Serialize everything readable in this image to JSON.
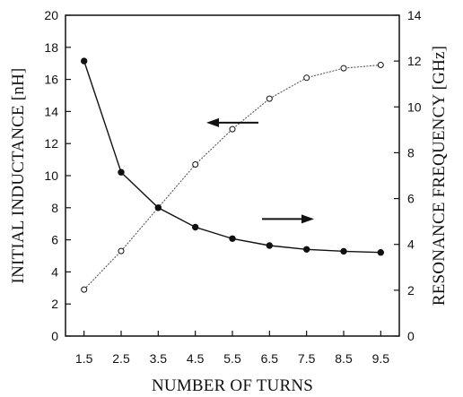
{
  "chart_data": {
    "type": "line",
    "xlabel": "NUMBER OF TURNS",
    "ylabel_left": "INITIAL INDUCTANCE [nH]",
    "ylabel_right": "RESONANCE FREQUENCY [GHz]",
    "x": [
      1.5,
      2.5,
      3.5,
      4.5,
      5.5,
      6.5,
      7.5,
      8.5,
      9.5
    ],
    "x_ticks": [
      "1.5",
      "2.5",
      "3.5",
      "4.5",
      "5.5",
      "6.5",
      "7.5",
      "8.5",
      "9.5"
    ],
    "ylim_left": [
      0,
      20
    ],
    "ylim_right": [
      0,
      14
    ],
    "y_ticks_left": [
      "0",
      "2",
      "4",
      "6",
      "8",
      "10",
      "12",
      "14",
      "16",
      "18",
      "20"
    ],
    "y_ticks_right": [
      "0",
      "2",
      "4",
      "6",
      "8",
      "10",
      "12",
      "14"
    ],
    "grid": false,
    "series": [
      {
        "axis": "left",
        "marker": "open-circle",
        "values": [
          2.9,
          5.3,
          8.0,
          10.7,
          12.9,
          14.8,
          16.1,
          16.7,
          16.9
        ]
      },
      {
        "axis": "right",
        "marker": "filled-circle",
        "values": [
          12.0,
          7.15,
          5.6,
          4.75,
          4.25,
          3.95,
          3.78,
          3.7,
          3.65
        ]
      }
    ],
    "annotations": [
      {
        "type": "arrow",
        "direction": "left",
        "points_to": "left-axis",
        "near_x": 5.5,
        "near_y_left": 13.3
      },
      {
        "type": "arrow",
        "direction": "right",
        "points_to": "right-axis",
        "near_x": 7.0,
        "near_y_left": 7.3
      }
    ]
  }
}
